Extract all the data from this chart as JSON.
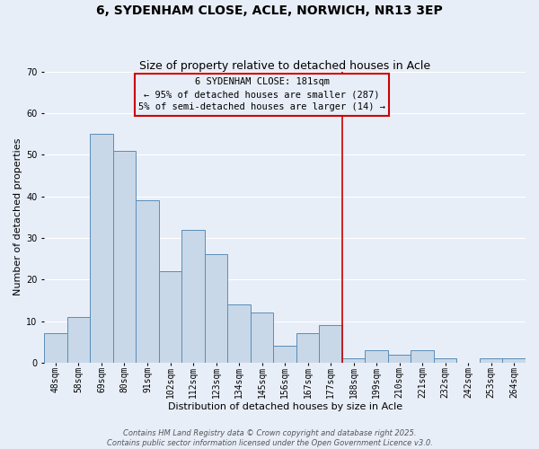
{
  "title": "6, SYDENHAM CLOSE, ACLE, NORWICH, NR13 3EP",
  "subtitle": "Size of property relative to detached houses in Acle",
  "xlabel": "Distribution of detached houses by size in Acle",
  "ylabel": "Number of detached properties",
  "bar_labels": [
    "48sqm",
    "58sqm",
    "69sqm",
    "80sqm",
    "91sqm",
    "102sqm",
    "112sqm",
    "123sqm",
    "134sqm",
    "145sqm",
    "156sqm",
    "167sqm",
    "177sqm",
    "188sqm",
    "199sqm",
    "210sqm",
    "221sqm",
    "232sqm",
    "242sqm",
    "253sqm",
    "264sqm"
  ],
  "bar_values": [
    7,
    11,
    55,
    51,
    39,
    22,
    32,
    26,
    14,
    12,
    4,
    7,
    9,
    1,
    3,
    2,
    3,
    1,
    0,
    1,
    1
  ],
  "bar_color": "#c8d8e8",
  "bar_edge_color": "#5b8db8",
  "background_color": "#e8eef8",
  "grid_color": "#d0d8e8",
  "ylim": [
    0,
    70
  ],
  "vline_x": 12.5,
  "vline_color": "#cc0000",
  "annotation_title": "6 SYDENHAM CLOSE: 181sqm",
  "annotation_line1": "← 95% of detached houses are smaller (287)",
  "annotation_line2": "5% of semi-detached houses are larger (14) →",
  "annotation_box_color": "#cc0000",
  "footer_line1": "Contains HM Land Registry data © Crown copyright and database right 2025.",
  "footer_line2": "Contains public sector information licensed under the Open Government Licence v3.0.",
  "title_fontsize": 10,
  "subtitle_fontsize": 9,
  "axis_label_fontsize": 8,
  "tick_fontsize": 7,
  "annotation_fontsize": 7.5,
  "footer_fontsize": 6
}
